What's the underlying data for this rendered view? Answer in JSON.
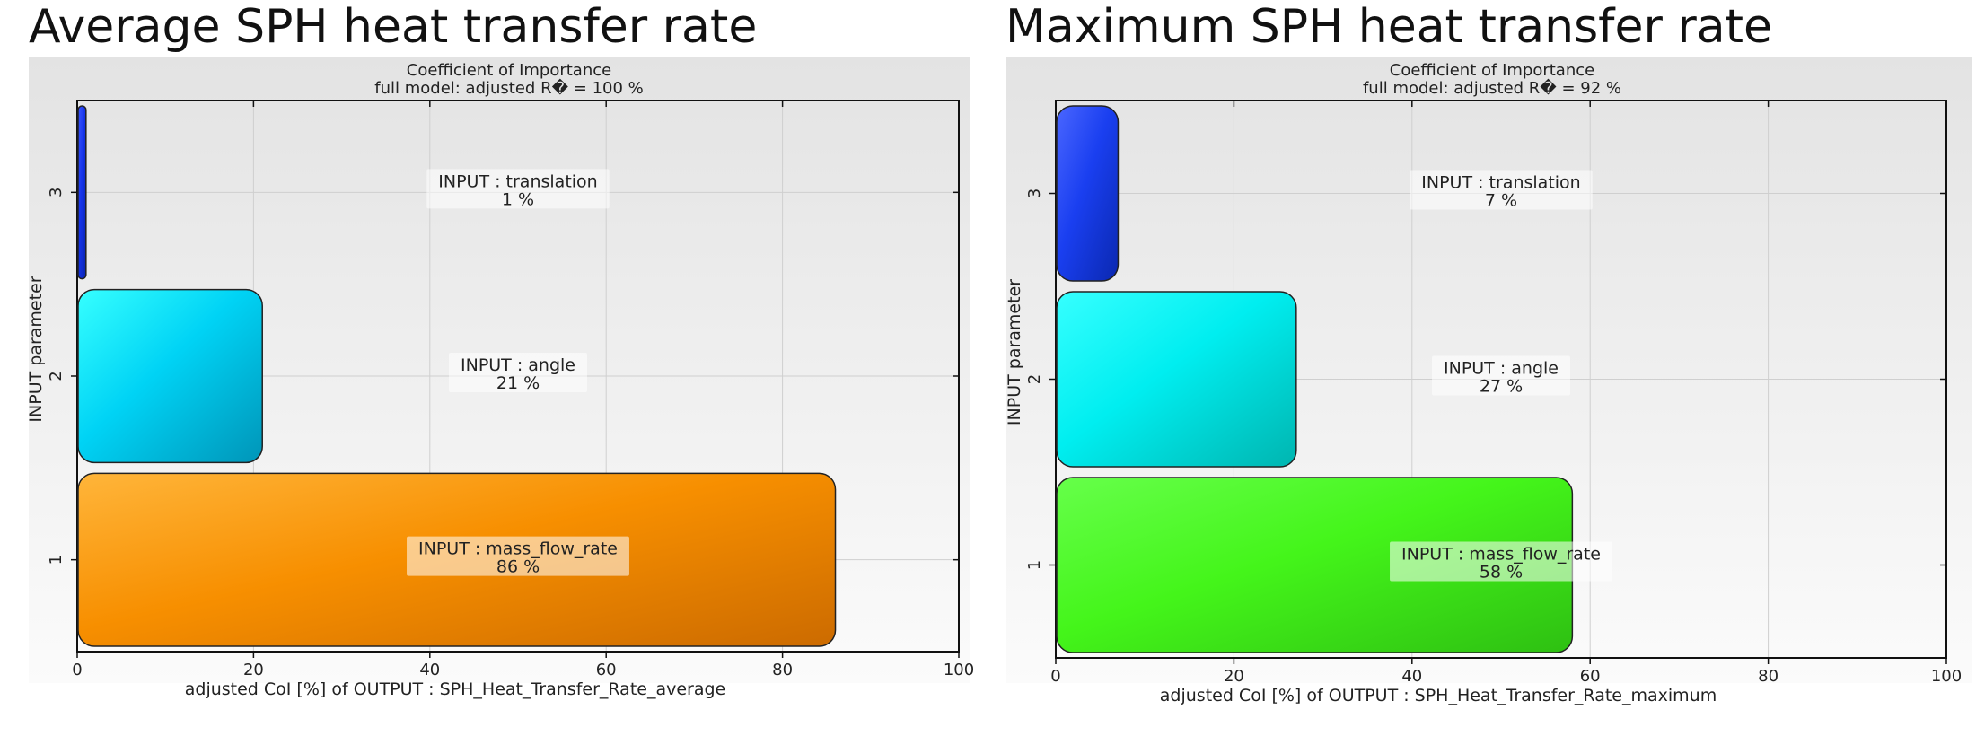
{
  "panels": [
    {
      "heading": "Average SPH heat transfer rate",
      "chart_data": {
        "type": "bar",
        "orientation": "horizontal",
        "title": "Coefficient of Importance",
        "subtitle": "full model: adjusted R� = 100 %",
        "xlabel": "adjusted CoI [%] of OUTPUT : SPH_Heat_Transfer_Rate_average",
        "ylabel": "INPUT parameter",
        "xlim": [
          0,
          100
        ],
        "xticks": [
          0,
          20,
          40,
          60,
          80,
          100
        ],
        "grid": true,
        "categories": [
          "1",
          "2",
          "3"
        ],
        "values": [
          86,
          21,
          1
        ],
        "bar_labels": [
          {
            "name": "INPUT : mass_flow_rate",
            "value_text": "86 %"
          },
          {
            "name": "INPUT : angle",
            "value_text": "21 %"
          },
          {
            "name": "INPUT : translation",
            "value_text": "1 %"
          }
        ],
        "colors": [
          [
            "#ffb53a",
            "#f78f00",
            "#cc6b00"
          ],
          [
            "#36ffff",
            "#00d3f5",
            "#0095b8"
          ],
          [
            "#3a55ff",
            "#1533e8",
            "#0a24b0"
          ]
        ]
      }
    },
    {
      "heading": "Maximum SPH heat transfer rate",
      "chart_data": {
        "type": "bar",
        "orientation": "horizontal",
        "title": "Coefficient of Importance",
        "subtitle": "full model: adjusted R� = 92 %",
        "xlabel": "adjusted CoI [%] of OUTPUT : SPH_Heat_Transfer_Rate_maximum",
        "ylabel": "INPUT parameter",
        "xlim": [
          0,
          100
        ],
        "xticks": [
          0,
          20,
          40,
          60,
          80,
          100
        ],
        "grid": true,
        "categories": [
          "1",
          "2",
          "3"
        ],
        "values": [
          58,
          27,
          7
        ],
        "bar_labels": [
          {
            "name": "INPUT : mass_flow_rate",
            "value_text": "58 %"
          },
          {
            "name": "INPUT : angle",
            "value_text": "27 %"
          },
          {
            "name": "INPUT : translation",
            "value_text": "7 %"
          }
        ],
        "colors": [
          [
            "#66ff4a",
            "#44f51a",
            "#2ec012"
          ],
          [
            "#36ffff",
            "#00eef0",
            "#00b5b0"
          ],
          [
            "#4a66ff",
            "#1a3ff0",
            "#0a28b0"
          ]
        ]
      }
    }
  ]
}
